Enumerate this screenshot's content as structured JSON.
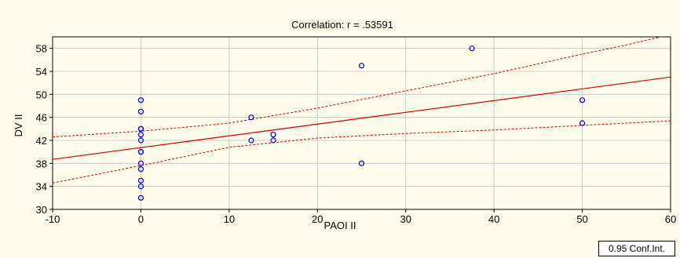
{
  "chart_data": {
    "type": "scatter",
    "title": "Correlation: r = .53591",
    "xlabel": "PAOI II",
    "ylabel": "DV II",
    "xlim": [
      -10,
      60
    ],
    "ylim": [
      30,
      60
    ],
    "xticks": [
      -10,
      0,
      10,
      20,
      30,
      40,
      50,
      60
    ],
    "yticks": [
      30,
      34,
      38,
      42,
      46,
      50,
      54,
      58
    ],
    "grid": true,
    "points": [
      {
        "x": 0,
        "y": 49
      },
      {
        "x": 0,
        "y": 47
      },
      {
        "x": 0,
        "y": 44
      },
      {
        "x": 0,
        "y": 44
      },
      {
        "x": 0,
        "y": 43
      },
      {
        "x": 0,
        "y": 42
      },
      {
        "x": 0,
        "y": 40
      },
      {
        "x": 0,
        "y": 40
      },
      {
        "x": 0,
        "y": 38
      },
      {
        "x": 0,
        "y": 37
      },
      {
        "x": 0,
        "y": 35
      },
      {
        "x": 0,
        "y": 34
      },
      {
        "x": 0,
        "y": 32
      },
      {
        "x": 12.5,
        "y": 46
      },
      {
        "x": 12.5,
        "y": 42
      },
      {
        "x": 15,
        "y": 43
      },
      {
        "x": 15,
        "y": 42
      },
      {
        "x": 25,
        "y": 55
      },
      {
        "x": 25,
        "y": 38
      },
      {
        "x": 37.5,
        "y": 58
      },
      {
        "x": 50,
        "y": 49
      },
      {
        "x": 50,
        "y": 45
      }
    ],
    "regression": {
      "x": [
        -10,
        60
      ],
      "y": [
        38.7,
        53.0
      ]
    },
    "ci_upper": {
      "x": [
        -10,
        0,
        10,
        20,
        30,
        40,
        50,
        55,
        60
      ],
      "y": [
        42.6,
        43.6,
        45.0,
        47.6,
        50.6,
        53.6,
        57.0,
        58.6,
        60.4
      ]
    },
    "ci_lower": {
      "x": [
        -10,
        0,
        10,
        20,
        30,
        40,
        50,
        60
      ],
      "y": [
        34.6,
        37.6,
        40.8,
        42.4,
        43.2,
        43.8,
        44.6,
        45.4
      ]
    },
    "legend": "0.95 Conf.Int.",
    "colors": {
      "points": "#0000cc",
      "regression": "#cc0000",
      "ci": "#cc0000",
      "background": "#fffbeb"
    }
  }
}
